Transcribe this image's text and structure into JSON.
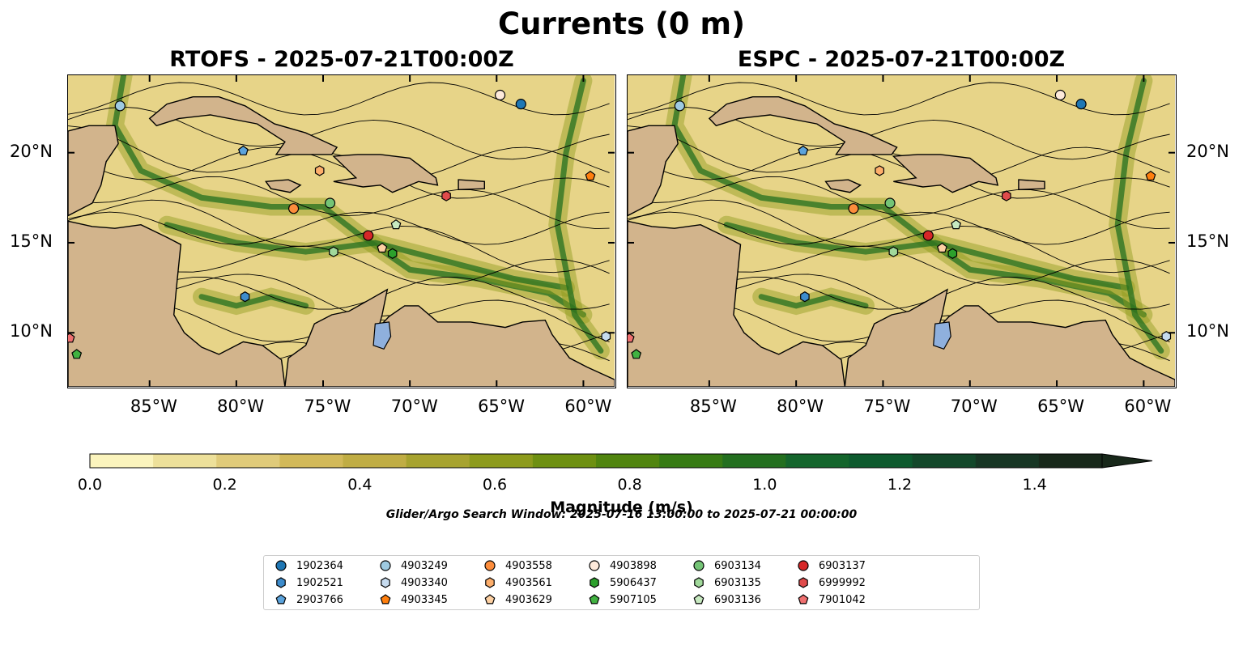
{
  "title": "Currents (0 m)",
  "panels": [
    {
      "title": "RTOFS - 2025-07-21T00:00Z"
    },
    {
      "title": "ESPC - 2025-07-21T00:00Z"
    }
  ],
  "axes": {
    "lon_labels": [
      "85°W",
      "80°W",
      "75°W",
      "70°W",
      "65°W",
      "60°W"
    ],
    "lat_labels": [
      "20°N",
      "15°N",
      "10°N"
    ],
    "lon_range": [
      -89.7,
      -58.2
    ],
    "lat_range": [
      7.0,
      24.3
    ]
  },
  "colorbar": {
    "label": "Magnitude (m/s)",
    "ticks": [
      "0.0",
      "0.2",
      "0.4",
      "0.6",
      "0.8",
      "1.0",
      "1.2",
      "1.4"
    ],
    "range": [
      0,
      1.5
    ],
    "extend": "max",
    "colors": [
      "#fbf4bd",
      "#ede09a",
      "#e0cb7a",
      "#d2b959",
      "#c0ad44",
      "#a7a32f",
      "#8d9b1c",
      "#6e9011",
      "#51850f",
      "#377b14",
      "#236f1f",
      "#14652c",
      "#0d5a2e",
      "#13482a",
      "#173624",
      "#18281a"
    ]
  },
  "search_window": "Glider/Argo Search Window: 2025-07-16 13:00:00 to 2025-07-21 00:00:00",
  "legend": [
    {
      "label": "1902364",
      "color": "#1f77b4",
      "marker": "circle"
    },
    {
      "label": "1902521",
      "color": "#3d8ccc",
      "marker": "hexagon"
    },
    {
      "label": "2903766",
      "color": "#5ba3dc",
      "marker": "pentagon"
    },
    {
      "label": "4903249",
      "color": "#9ecae1",
      "marker": "circle"
    },
    {
      "label": "4903340",
      "color": "#c6dbef",
      "marker": "hexagon"
    },
    {
      "label": "4903345",
      "color": "#ff7f0e",
      "marker": "pentagon"
    },
    {
      "label": "4903558",
      "color": "#fd8d3c",
      "marker": "circle"
    },
    {
      "label": "4903561",
      "color": "#fdae6b",
      "marker": "hexagon"
    },
    {
      "label": "4903629",
      "color": "#fdd0a2",
      "marker": "pentagon"
    },
    {
      "label": "4903898",
      "color": "#feeadb",
      "marker": "circle"
    },
    {
      "label": "5906437",
      "color": "#2ca02c",
      "marker": "hexagon"
    },
    {
      "label": "5907105",
      "color": "#41b241",
      "marker": "pentagon"
    },
    {
      "label": "6903134",
      "color": "#74c476",
      "marker": "circle"
    },
    {
      "label": "6903135",
      "color": "#a1d99b",
      "marker": "hexagon"
    },
    {
      "label": "6903136",
      "color": "#c7e9c0",
      "marker": "pentagon"
    },
    {
      "label": "6903137",
      "color": "#d62728",
      "marker": "circle"
    },
    {
      "label": "6999992",
      "color": "#e04b4b",
      "marker": "hexagon"
    },
    {
      "label": "7901042",
      "color": "#f07070",
      "marker": "pentagon"
    }
  ],
  "floats": [
    {
      "id": "1902364",
      "lon": -63.6,
      "lat": 22.7
    },
    {
      "id": "1902521",
      "lon": -79.5,
      "lat": 12.0
    },
    {
      "id": "2903766",
      "lon": -79.6,
      "lat": 20.1
    },
    {
      "id": "4903249",
      "lon": -86.7,
      "lat": 22.6
    },
    {
      "id": "4903340",
      "lon": -58.7,
      "lat": 9.8
    },
    {
      "id": "4903345",
      "lon": -59.6,
      "lat": 18.7
    },
    {
      "id": "4903558",
      "lon": -76.7,
      "lat": 16.9
    },
    {
      "id": "4903561",
      "lon": -75.2,
      "lat": 19.0
    },
    {
      "id": "4903629",
      "lon": -71.6,
      "lat": 14.7
    },
    {
      "id": "4903898",
      "lon": -64.8,
      "lat": 23.2
    },
    {
      "id": "5906437",
      "lon": -71.0,
      "lat": 14.4
    },
    {
      "id": "5907105",
      "lon": -89.2,
      "lat": 8.8
    },
    {
      "id": "6903134",
      "lon": -74.6,
      "lat": 17.2
    },
    {
      "id": "6903135",
      "lon": -74.4,
      "lat": 14.5
    },
    {
      "id": "6903136",
      "lon": -70.8,
      "lat": 16.0
    },
    {
      "id": "6903137",
      "lon": -72.4,
      "lat": 15.4
    },
    {
      "id": "6999992",
      "lon": -67.9,
      "lat": 17.6
    },
    {
      "id": "7901042",
      "lon": -89.6,
      "lat": 9.7
    }
  ]
}
